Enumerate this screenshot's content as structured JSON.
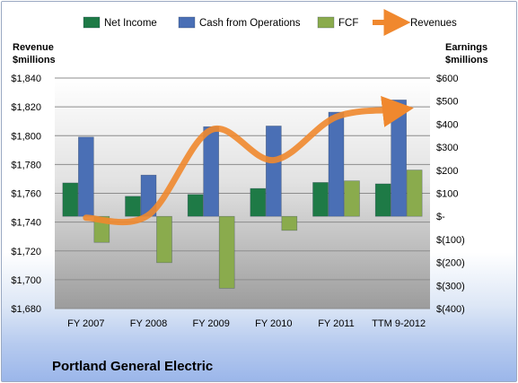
{
  "company": "Portland General Electric",
  "chart_data": {
    "type": "bar",
    "categories": [
      "FY 2007",
      "FY 2008",
      "FY 2009",
      "FY 2010",
      "FY 2011",
      "TTM 9-2012"
    ],
    "series": [
      {
        "name": "Net Income",
        "axis": "right",
        "color": "#1e7a46",
        "values": [
          145,
          87,
          95,
          121,
          147,
          141
        ]
      },
      {
        "name": "Cash from Operations",
        "axis": "right",
        "color": "#4a6fb5",
        "values": [
          344,
          179,
          389,
          392,
          452,
          505
        ]
      },
      {
        "name": "FCF",
        "axis": "right",
        "color": "#8aab4d",
        "values": [
          -113,
          -201,
          -312,
          -61,
          154,
          201
        ]
      },
      {
        "name": "Revenues",
        "axis": "left",
        "type": "line",
        "color": "#f0882e",
        "values": [
          1743,
          1745,
          1804,
          1783,
          1813,
          1818
        ]
      }
    ],
    "left_axis": {
      "title_lines": [
        "Revenue",
        "$millions"
      ],
      "ylim": [
        1680,
        1840
      ],
      "ticks": [
        "$1,840",
        "$1,820",
        "$1,800",
        "$1,780",
        "$1,760",
        "$1,740",
        "$1,720",
        "$1,700",
        "$1,680"
      ]
    },
    "right_axis": {
      "title_lines": [
        "Earnings",
        "$millions"
      ],
      "ylim": [
        -400,
        600
      ],
      "ticks": [
        "$600",
        "$500",
        "$400",
        "$300",
        "$200",
        "$100",
        "$-",
        "$(100)",
        "$(200)",
        "$(300)",
        "$(400)"
      ]
    },
    "legend": {
      "placement": "top"
    },
    "grid": true
  }
}
